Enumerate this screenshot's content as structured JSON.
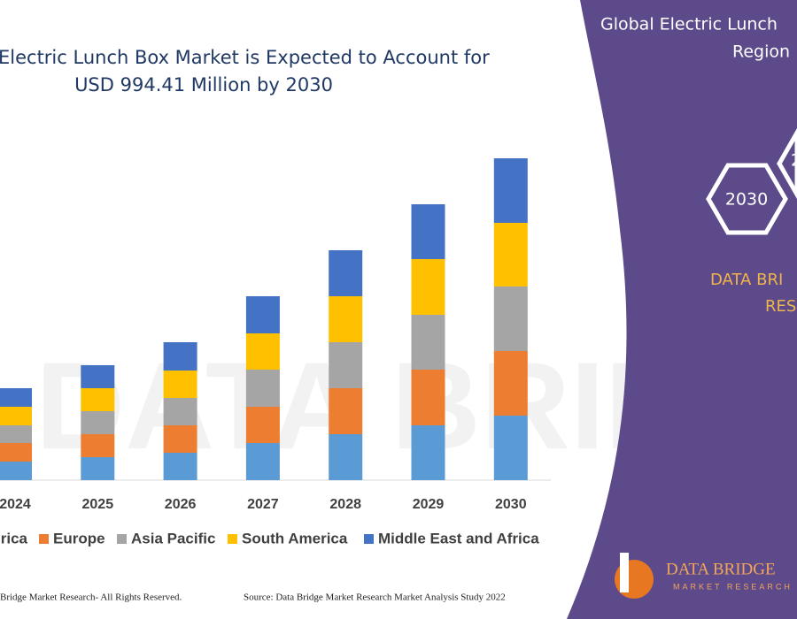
{
  "chart_data": {
    "type": "bar",
    "stacked": true,
    "title": [
      "Electric Lunch Box Market is Expected to Account for",
      "USD 994.41 Million by 2030"
    ],
    "categories": [
      "2024",
      "2025",
      "2026",
      "2027",
      "2028",
      "2029",
      "2030"
    ],
    "series": [
      {
        "name": "rica",
        "color": "#5b9bd5",
        "values": [
          21,
          26,
          31,
          42,
          52,
          62,
          73
        ]
      },
      {
        "name": "Europe",
        "color": "#ed7d31",
        "values": [
          21,
          26,
          31,
          41,
          52,
          63,
          73
        ]
      },
      {
        "name": "Asia Pacific",
        "color": "#a5a5a5",
        "values": [
          20,
          26,
          31,
          42,
          52,
          62,
          73
        ]
      },
      {
        "name": "South America",
        "color": "#ffc000",
        "values": [
          21,
          26,
          31,
          41,
          52,
          63,
          72
        ]
      },
      {
        "name": "Middle East and Africa",
        "color": "#4472c4",
        "values": [
          21,
          26,
          32,
          42,
          52,
          62,
          73
        ]
      }
    ]
  },
  "side_panel": {
    "title": [
      "Global Electric Lunch",
      "Region"
    ],
    "hexagons": [
      "2030",
      "2"
    ],
    "brand": [
      "DATA BRI",
      "RES"
    ]
  },
  "logo": {
    "name": "DATA BRIDGE",
    "tagline": "MARKET RESEARCH"
  },
  "footer": {
    "copyright": "Bridge Market Research- All Rights Reserved.",
    "source": "Source: Data Bridge Market Research Market Analysis Study 2022"
  }
}
